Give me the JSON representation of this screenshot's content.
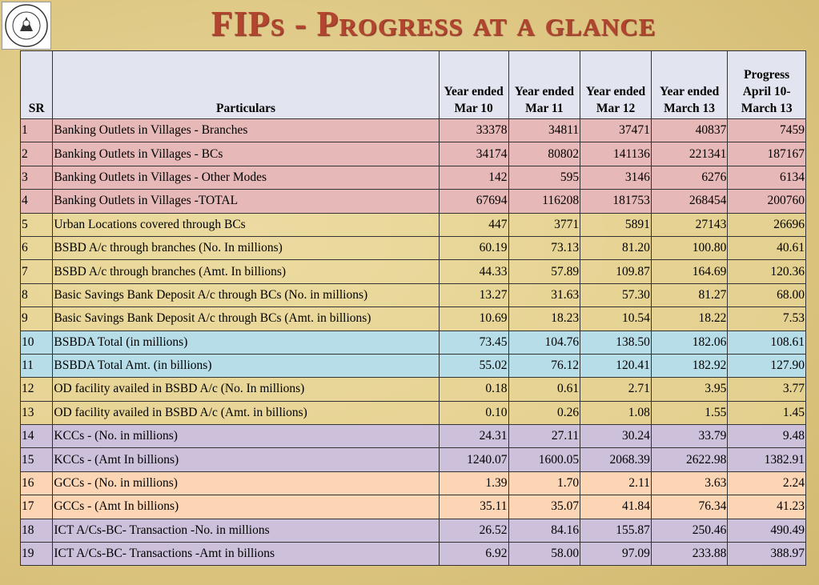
{
  "title": "FIPs - Progress at a glance",
  "table": {
    "header": [
      "SR",
      "Particulars",
      "Year ended Mar 10",
      "Year ended Mar 11",
      "Year ended Mar 12",
      "Year ended March 13",
      "Progress April 10- March 13"
    ],
    "rows": [
      [
        "1",
        "Banking Outlets in Villages - Branches",
        "33378",
        "34811",
        "37471",
        "40837",
        "7459"
      ],
      [
        "2",
        "Banking Outlets in Villages - BCs",
        "34174",
        "80802",
        "141136",
        "221341",
        "187167"
      ],
      [
        "3",
        "Banking Outlets in Villages - Other Modes",
        "142",
        "595",
        "3146",
        "6276",
        "6134"
      ],
      [
        "4",
        "Banking Outlets in Villages -TOTAL",
        "67694",
        "116208",
        "181753",
        "268454",
        "200760"
      ],
      [
        "5",
        "Urban Locations covered through BCs",
        "447",
        "3771",
        "5891",
        "27143",
        "26696"
      ],
      [
        "6",
        "BSBD A/c through branches (No. In millions)",
        "60.19",
        "73.13",
        "81.20",
        "100.80",
        "40.61"
      ],
      [
        "7",
        "BSBD A/c through branches (Amt. In billions)",
        "44.33",
        "57.89",
        "109.87",
        "164.69",
        "120.36"
      ],
      [
        "8",
        "Basic Savings Bank Deposit A/c through BCs (No. in millions)",
        "13.27",
        "31.63",
        "57.30",
        "81.27",
        "68.00"
      ],
      [
        "9",
        "Basic Savings Bank Deposit A/c through BCs (Amt. in billions)",
        "10.69",
        "18.23",
        "10.54",
        "18.22",
        "7.53"
      ],
      [
        "10",
        "BSBDA Total (in millions)",
        "73.45",
        "104.76",
        "138.50",
        "182.06",
        "108.61"
      ],
      [
        "11",
        "BSBDA Total Amt. (in billions)",
        "55.02",
        "76.12",
        "120.41",
        "182.92",
        "127.90"
      ],
      [
        "12",
        "OD facility availed in BSBD A/c (No. In millions)",
        "0.18",
        "0.61",
        "2.71",
        "3.95",
        "3.77"
      ],
      [
        "13",
        "OD facility availed in BSBD A/c (Amt. in billions)",
        "0.10",
        "0.26",
        "1.08",
        "1.55",
        "1.45"
      ],
      [
        "14",
        "KCCs - (No. in millions)",
        "24.31",
        "27.11",
        "30.24",
        "33.79",
        "9.48"
      ],
      [
        "15",
        "KCCs - (Amt In billions)",
        "1240.07",
        "1600.05",
        "2068.39",
        "2622.98",
        "1382.91"
      ],
      [
        "16",
        "GCCs - (No. in millions)",
        "1.39",
        "1.70",
        "2.11",
        "3.63",
        "2.24"
      ],
      [
        "17",
        "GCCs - (Amt In billions)",
        "35.11",
        "35.07",
        "41.84",
        "76.34",
        "41.23"
      ],
      [
        "18",
        "ICT A/Cs-BC- Transaction -No. in millions",
        "26.52",
        "84.16",
        "155.87",
        "250.46",
        "490.49"
      ],
      [
        "19",
        "ICT A/Cs-BC- Transactions -Amt in billions",
        "6.92",
        "58.00",
        "97.09",
        "233.88",
        "388.97"
      ]
    ]
  }
}
